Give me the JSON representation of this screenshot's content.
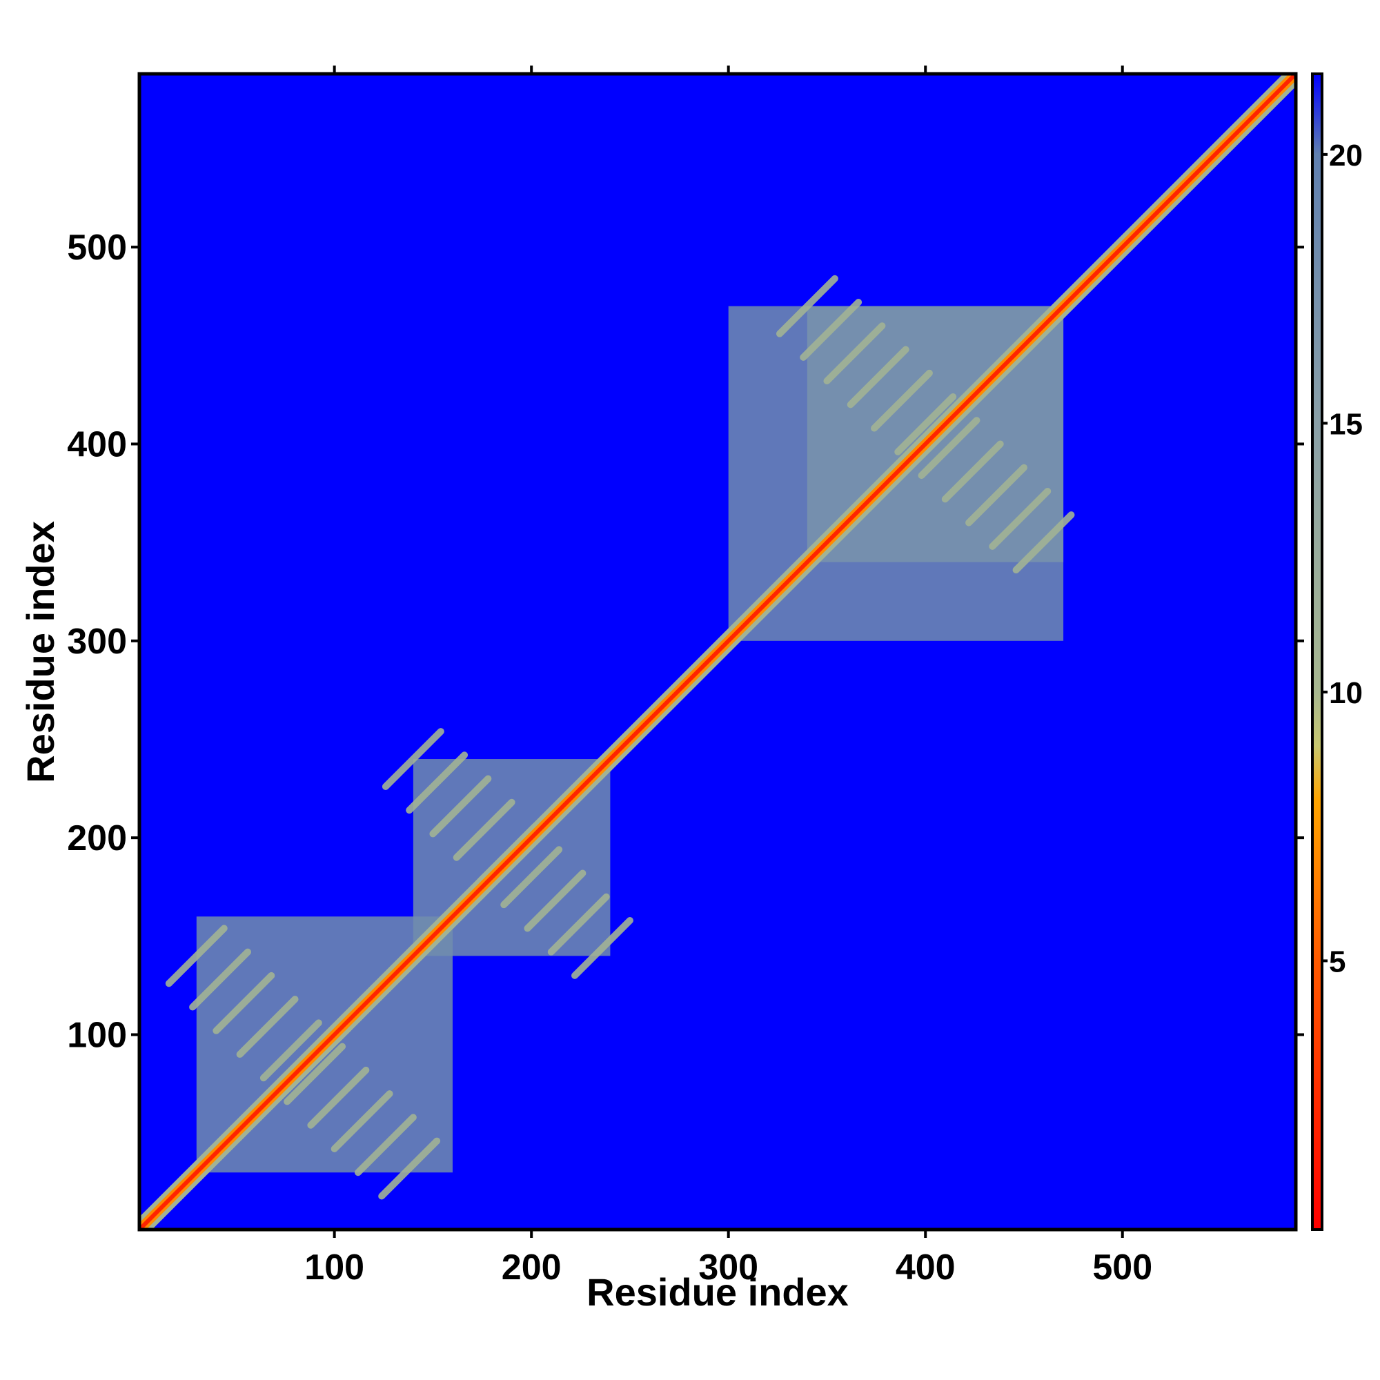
{
  "chart_data": {
    "type": "heatmap",
    "title": "",
    "xlabel": "Residue index",
    "ylabel": "Residue index",
    "xlim": [
      1,
      588
    ],
    "ylim": [
      1,
      588
    ],
    "x_ticks": [
      "100",
      "200",
      "300",
      "400",
      "500"
    ],
    "y_ticks": [
      "100",
      "200",
      "300",
      "400",
      "500"
    ],
    "colorbar": {
      "range": [
        0,
        21.5
      ],
      "ticks": [
        "5",
        "10",
        "15",
        "20"
      ],
      "stops": [
        {
          "value": 0,
          "color": "#ff0000"
        },
        {
          "value": 5,
          "color": "#ff5a00"
        },
        {
          "value": 8,
          "color": "#ffa500"
        },
        {
          "value": 9,
          "color": "#c8c870"
        },
        {
          "value": 10,
          "color": "#a8b890"
        },
        {
          "value": 15,
          "color": "#8aa0a8"
        },
        {
          "value": 20,
          "color": "#6080b0"
        },
        {
          "value": 21.5,
          "color": "#0000ff"
        }
      ]
    },
    "background_value": 21.5,
    "domains": [
      {
        "start": 30,
        "end": 160,
        "value": 18
      },
      {
        "start": 140,
        "end": 240,
        "value": 18
      },
      {
        "start": 300,
        "end": 470,
        "value": 18
      },
      {
        "start": 340,
        "end": 470,
        "value": 17
      }
    ],
    "contact_bands": [
      {
        "x": [
          30,
          140
        ],
        "y": [
          30,
          140
        ],
        "value": 11
      },
      {
        "x": [
          140,
          240
        ],
        "y": [
          140,
          240
        ],
        "value": 11
      },
      {
        "x": [
          340,
          470
        ],
        "y": [
          340,
          470
        ],
        "value": 11
      }
    ],
    "diagonal_value": 2
  },
  "colors": {
    "background": "#0000ff",
    "diagonal": "#ff0000",
    "axis": "#000000"
  }
}
